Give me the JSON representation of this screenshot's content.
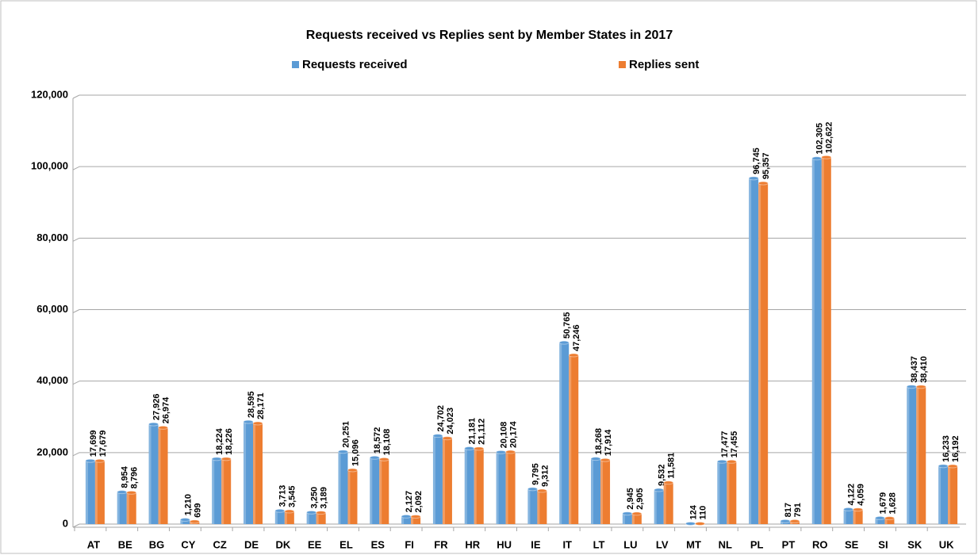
{
  "chart_data": {
    "type": "bar",
    "title": "Requests received vs Replies sent  by Member States in 2017",
    "categories": [
      "AT",
      "BE",
      "BG",
      "CY",
      "CZ",
      "DE",
      "DK",
      "EE",
      "EL",
      "ES",
      "FI",
      "FR",
      "HR",
      "HU",
      "IE",
      "IT",
      "LT",
      "LU",
      "LV",
      "MT",
      "NL",
      "PL",
      "PT",
      "RO",
      "SE",
      "SI",
      "SK",
      "UK"
    ],
    "series": [
      {
        "name": "Requests received",
        "color": "#5b9bd5",
        "values": [
          17699,
          8954,
          27926,
          1210,
          18224,
          28595,
          3713,
          3250,
          20251,
          18572,
          2127,
          24702,
          21181,
          20108,
          9795,
          50765,
          18268,
          2945,
          9532,
          124,
          17477,
          96745,
          817,
          102305,
          4122,
          1679,
          38437,
          16233
        ],
        "value_labels": [
          "17,699",
          "8,954",
          "27,926",
          "1,210",
          "18,224",
          "28,595",
          "3,713",
          "3,250",
          "20,251",
          "18,572",
          "2,127",
          "24,702",
          "21,181",
          "20,108",
          "9,795",
          "50,765",
          "18,268",
          "2,945",
          "9,532",
          "124",
          "17,477",
          "96,745",
          "817",
          "102,305",
          "4,122",
          "1,679",
          "38,437",
          "16,233"
        ]
      },
      {
        "name": "Replies sent",
        "color": "#ed7d31",
        "values": [
          17679,
          8796,
          26974,
          699,
          18226,
          28171,
          3545,
          3189,
          15096,
          18108,
          2092,
          24023,
          21112,
          20174,
          9312,
          47246,
          17914,
          2905,
          11581,
          110,
          17455,
          95357,
          791,
          102622,
          4059,
          1628,
          38410,
          16192
        ],
        "value_labels": [
          "17,679",
          "8,796",
          "26,974",
          "699",
          "18,226",
          "28,171",
          "3,545",
          "3,189",
          "15,096",
          "18,108",
          "2,092",
          "24,023",
          "21,112",
          "20,174",
          "9,312",
          "47,246",
          "17,914",
          "2,905",
          "11,581",
          "110",
          "17,455",
          "95,357",
          "791",
          "102,622",
          "4,059",
          "1,628",
          "38,410",
          "16,192"
        ]
      }
    ],
    "ylim": [
      0,
      120000
    ],
    "yticks": [
      0,
      {
        "value": 20000,
        "label": "20,000"
      },
      {
        "value": 40000,
        "label": "40,000"
      },
      {
        "value": 60000,
        "label": "60,000"
      },
      {
        "value": 80000,
        "label": "80,000"
      },
      {
        "value": 100000,
        "label": "100,000"
      },
      {
        "value": 120000,
        "label": "120,000"
      }
    ],
    "grid": true,
    "legend": "top"
  }
}
